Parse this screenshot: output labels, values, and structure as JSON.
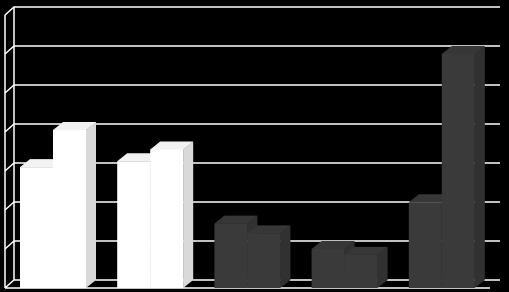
{
  "chart_data": {
    "type": "bar3d",
    "categories": [
      null,
      null,
      null,
      null,
      null
    ],
    "series": [
      {
        "values": [
          3.1,
          3.25,
          1.65,
          1.0,
          2.2
        ],
        "colors": [
          "#ffffff",
          "#ffffff",
          "#3a3a3a",
          "#3a3a3a",
          "#3a3a3a"
        ]
      },
      {
        "values": [
          4.05,
          3.55,
          1.4,
          0.85,
          6.0
        ],
        "colors": [
          "#ffffff",
          "#ffffff",
          "#3a3a3a",
          "#3a3a3a",
          "#3a3a3a"
        ]
      }
    ],
    "ylim": [
      0,
      7
    ],
    "yticks": [
      0,
      1,
      2,
      3,
      4,
      5,
      6,
      7
    ],
    "grid": true
  }
}
